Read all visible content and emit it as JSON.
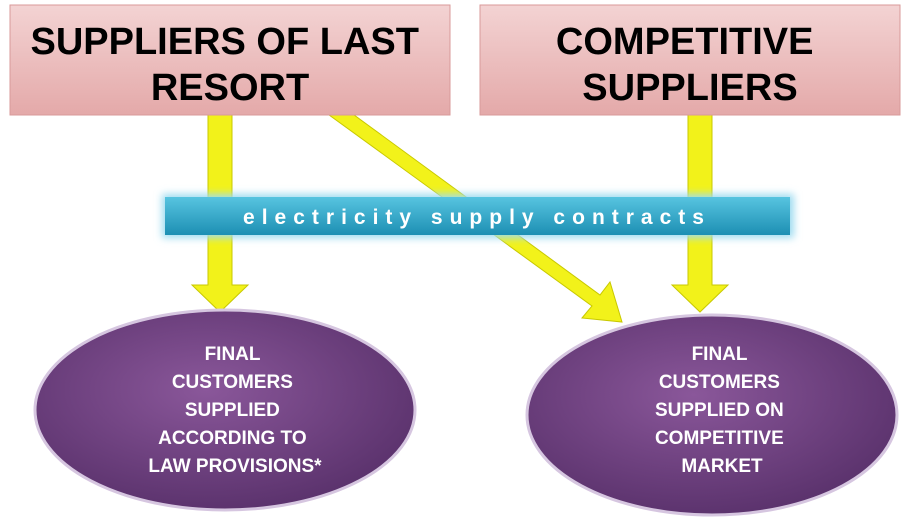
{
  "nodes": [
    {
      "label": [
        "SUPPLIERS OF LAST",
        "RESORT"
      ]
    },
    {
      "label": [
        "COMPETITIVE",
        "SUPPLIERS"
      ]
    },
    {
      "label": [
        "FINAL",
        "CUSTOMERS",
        "SUPPLIED",
        "ACCORDING TO",
        "LAW PROVISIONS*"
      ]
    },
    {
      "label": [
        "FINAL",
        "CUSTOMERS",
        "SUPPLIED ON",
        "COMPETITIVE",
        "MARKET"
      ]
    }
  ],
  "banner": {
    "label": "electricity supply contracts"
  }
}
